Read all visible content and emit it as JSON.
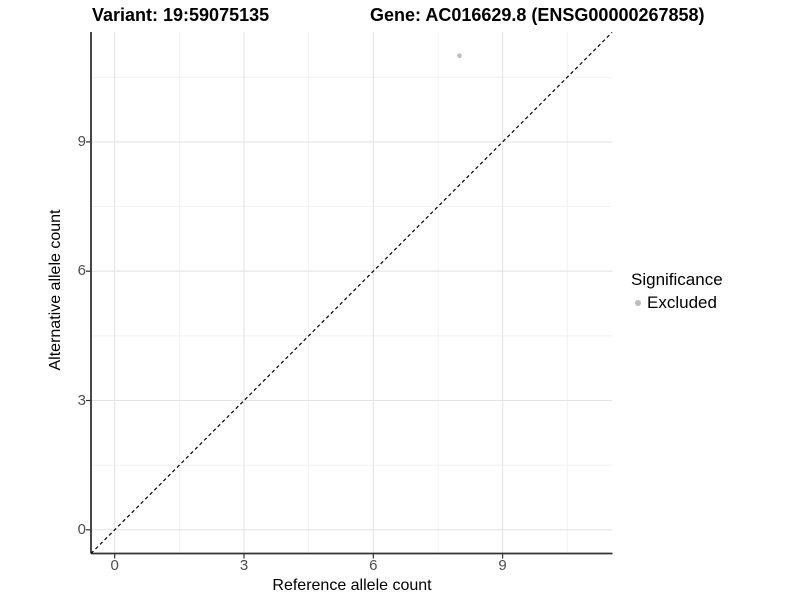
{
  "chart_data": {
    "type": "scatter",
    "title_left": "Variant: 19:59075135",
    "title_right": "Gene: AC016629.8 (ENSG00000267858)",
    "xlabel": "Reference allele count",
    "ylabel": "Alternative allele count",
    "xlim": [
      -0.55,
      11.55
    ],
    "ylim": [
      -0.55,
      11.55
    ],
    "ticks": [
      0,
      3,
      6,
      9
    ],
    "minor_gridlines": [
      1.5,
      4.5,
      7.5,
      10.5
    ],
    "grid": "on",
    "points": [
      {
        "x": 8,
        "y": 11,
        "significance": "Excluded"
      }
    ],
    "identity_line": {
      "style": "dashed",
      "from": [
        -0.55,
        -0.55
      ],
      "to": [
        11.54,
        11.54
      ]
    },
    "legend": {
      "title": "Significance",
      "position": "right",
      "items": [
        {
          "label": "Excluded",
          "color": "#bdbdbd"
        }
      ]
    },
    "colors": {
      "point": "#bdbdbd",
      "grid_major": "#e4e4e4",
      "grid_minor": "#f1f1f1",
      "axis_line": "#333333",
      "tick_text": "#4d4d4d",
      "identity_line": "#000000",
      "background": "#ffffff"
    }
  }
}
